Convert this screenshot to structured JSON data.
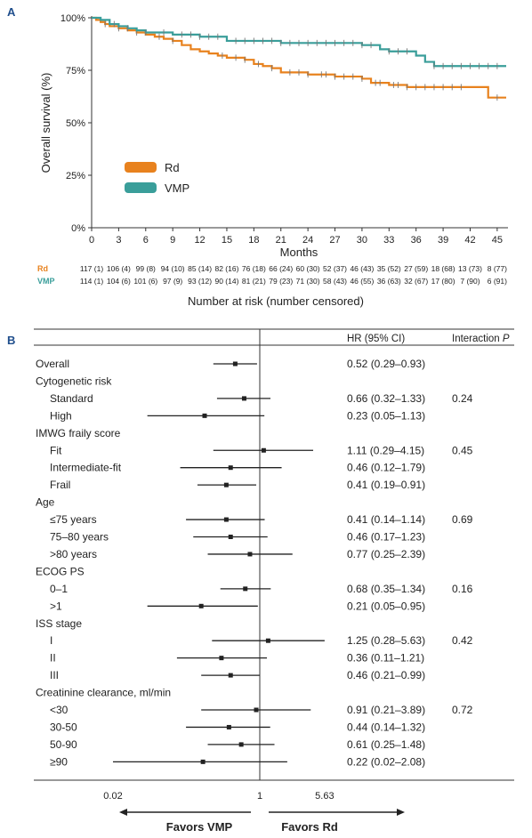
{
  "chart_data": [
    {
      "panel": "A",
      "type": "line",
      "xlabel": "Months",
      "ylabel": "Overall survival (%)",
      "xlim": [
        0,
        46
      ],
      "ylim": [
        0,
        100
      ],
      "x_ticks": [
        "0",
        "3",
        "6",
        "9",
        "12",
        "15",
        "18",
        "21",
        "24",
        "27",
        "30",
        "33",
        "36",
        "39",
        "42",
        "45"
      ],
      "y_ticks": [
        "0%",
        "25%",
        "50%",
        "75%",
        "100%"
      ],
      "legend_position": "center-left",
      "grid": false,
      "series": [
        {
          "name": "Rd",
          "color": "#e8821e",
          "points": [
            [
              0,
              100
            ],
            [
              0.5,
              99
            ],
            [
              1,
              98
            ],
            [
              1.5,
              97
            ],
            [
              2,
              96
            ],
            [
              3,
              95
            ],
            [
              4,
              94
            ],
            [
              5,
              93
            ],
            [
              6,
              92
            ],
            [
              7,
              91
            ],
            [
              8,
              90
            ],
            [
              9,
              89
            ],
            [
              10,
              87
            ],
            [
              11,
              85
            ],
            [
              12,
              84
            ],
            [
              13,
              83
            ],
            [
              14,
              82
            ],
            [
              15,
              81
            ],
            [
              17,
              80
            ],
            [
              18,
              78
            ],
            [
              19,
              77
            ],
            [
              20,
              76
            ],
            [
              21,
              74
            ],
            [
              24,
              73
            ],
            [
              27,
              72
            ],
            [
              30,
              71
            ],
            [
              31,
              69
            ],
            [
              33,
              68
            ],
            [
              35,
              67
            ],
            [
              42,
              67
            ],
            [
              44,
              65
            ],
            [
              44,
              62
            ],
            [
              46,
              62
            ]
          ]
        },
        {
          "name": "VMP",
          "color": "#3a9e9a",
          "points": [
            [
              0,
              100
            ],
            [
              1,
              99
            ],
            [
              2,
              97
            ],
            [
              3,
              96
            ],
            [
              4,
              95
            ],
            [
              5,
              94
            ],
            [
              6,
              93
            ],
            [
              9,
              92
            ],
            [
              12,
              91
            ],
            [
              15,
              89
            ],
            [
              21,
              88
            ],
            [
              30,
              87
            ],
            [
              32,
              85
            ],
            [
              33,
              84
            ],
            [
              36,
              82
            ],
            [
              37,
              79
            ],
            [
              38,
              77
            ],
            [
              46,
              77
            ]
          ]
        }
      ],
      "censor_marks": {
        "Rd": [
          1.5,
          3,
          5,
          7.5,
          9,
          14.5,
          16,
          17,
          18.5,
          20,
          22,
          23,
          24,
          25.5,
          26,
          27,
          28,
          29,
          30,
          31.5,
          32,
          33.5,
          34,
          35,
          36,
          37,
          38,
          39,
          40,
          41,
          45
        ],
        "VMP": [
          2.5,
          4,
          6,
          8,
          10,
          11,
          12,
          13,
          14,
          16,
          17,
          18,
          19,
          20,
          21,
          22,
          23,
          24,
          25,
          26,
          27,
          28,
          29,
          30,
          31,
          33,
          34,
          35,
          38,
          39,
          40,
          41,
          42,
          43,
          44,
          45
        ]
      },
      "risk_table": {
        "title": "Number at risk (number censored)",
        "rows": [
          {
            "label": "Rd",
            "color": "#e8821e",
            "values": [
              "117 (1)",
              "106 (4)",
              "99 (8)",
              "94 (10)",
              "85 (14)",
              "82 (16)",
              "76 (18)",
              "66 (24)",
              "60 (30)",
              "52 (37)",
              "46 (43)",
              "35 (52)",
              "27 (59)",
              "18 (68)",
              "13 (73)",
              "8 (77)"
            ]
          },
          {
            "label": "VMP",
            "color": "#3a9e9a",
            "values": [
              "114 (1)",
              "104 (6)",
              "101 (6)",
              "97 (9)",
              "93 (12)",
              "90 (14)",
              "81 (21)",
              "79 (23)",
              "71 (30)",
              "58 (43)",
              "46 (55)",
              "36 (63)",
              "32 (67)",
              "17 (80)",
              "7 (90)",
              "6 (91)"
            ]
          }
        ]
      }
    },
    {
      "panel": "B",
      "type": "forest",
      "header_hr": "HR (95% CI)",
      "header_interaction": "Interaction",
      "header_interaction_p": "P",
      "x_ticks": [
        "0.02",
        "1",
        "5.63"
      ],
      "favors_left": "Favors VMP",
      "favors_right": "Favors Rd",
      "rows": [
        {
          "label": "Overall",
          "indent": 0,
          "hr": 0.52,
          "lo": 0.29,
          "hi": 0.93,
          "text": "0.52 (0.29–0.93)",
          "p": ""
        },
        {
          "label": "Cytogenetic risk",
          "indent": 0,
          "header": true
        },
        {
          "label": "Standard",
          "indent": 1,
          "hr": 0.66,
          "lo": 0.32,
          "hi": 1.33,
          "text": "0.66 (0.32–1.33)",
          "p": "0.24"
        },
        {
          "label": "High",
          "indent": 1,
          "hr": 0.23,
          "lo": 0.05,
          "hi": 1.13,
          "text": "0.23 (0.05–1.13)",
          "p": ""
        },
        {
          "label": "IMWG fraily score",
          "indent": 0,
          "header": true
        },
        {
          "label": "Fit",
          "indent": 1,
          "hr": 1.11,
          "lo": 0.29,
          "hi": 4.15,
          "text": "1.11 (0.29–4.15)",
          "p": "0.45"
        },
        {
          "label": "Intermediate-fit",
          "indent": 1,
          "hr": 0.46,
          "lo": 0.12,
          "hi": 1.79,
          "text": "0.46 (0.12–1.79)",
          "p": ""
        },
        {
          "label": "Frail",
          "indent": 1,
          "hr": 0.41,
          "lo": 0.19,
          "hi": 0.91,
          "text": "0.41 (0.19–0.91)",
          "p": ""
        },
        {
          "label": "Age",
          "indent": 0,
          "header": true
        },
        {
          "label": "≤75 years",
          "indent": 1,
          "hr": 0.41,
          "lo": 0.14,
          "hi": 1.14,
          "text": "0.41 (0.14–1.14)",
          "p": "0.69"
        },
        {
          "label": "75–80 years",
          "indent": 1,
          "hr": 0.46,
          "lo": 0.17,
          "hi": 1.23,
          "text": "0.46 (0.17–1.23)",
          "p": ""
        },
        {
          "label": ">80 years",
          "indent": 1,
          "hr": 0.77,
          "lo": 0.25,
          "hi": 2.39,
          "text": "0.77 (0.25–2.39)",
          "p": ""
        },
        {
          "label": "ECOG PS",
          "indent": 0,
          "header": true
        },
        {
          "label": "0–1",
          "indent": 1,
          "hr": 0.68,
          "lo": 0.35,
          "hi": 1.34,
          "text": "0.68 (0.35–1.34)",
          "p": "0.16"
        },
        {
          "label": ">1",
          "indent": 1,
          "hr": 0.21,
          "lo": 0.05,
          "hi": 0.95,
          "text": "0.21 (0.05–0.95)",
          "p": ""
        },
        {
          "label": "ISS stage",
          "indent": 0,
          "header": true
        },
        {
          "label": "I",
          "indent": 1,
          "hr": 1.25,
          "lo": 0.28,
          "hi": 5.63,
          "text": "1.25 (0.28–5.63)",
          "p": "0.42"
        },
        {
          "label": "II",
          "indent": 1,
          "hr": 0.36,
          "lo": 0.11,
          "hi": 1.21,
          "text": "0.36 (0.11–1.21)",
          "p": ""
        },
        {
          "label": "III",
          "indent": 1,
          "hr": 0.46,
          "lo": 0.21,
          "hi": 0.99,
          "text": "0.46 (0.21–0.99)",
          "p": ""
        },
        {
          "label": "Creatinine clearance, ml/min",
          "indent": 0,
          "header": true
        },
        {
          "label": "<30",
          "indent": 1,
          "hr": 0.91,
          "lo": 0.21,
          "hi": 3.89,
          "text": "0.91 (0.21–3.89)",
          "p": "0.72"
        },
        {
          "label": "30-50",
          "indent": 1,
          "hr": 0.44,
          "lo": 0.14,
          "hi": 1.32,
          "text": "0.44 (0.14–1.32)",
          "p": ""
        },
        {
          "label": "50-90",
          "indent": 1,
          "hr": 0.61,
          "lo": 0.25,
          "hi": 1.48,
          "text": "0.61 (0.25–1.48)",
          "p": ""
        },
        {
          "label": "≥90",
          "indent": 1,
          "hr": 0.22,
          "lo": 0.02,
          "hi": 2.08,
          "text": "0.22 (0.02–2.08)",
          "p": ""
        }
      ]
    }
  ],
  "colors": {
    "rd": "#e8821e",
    "vmp": "#3a9e9a",
    "panel_label": "#1f4e8c"
  }
}
